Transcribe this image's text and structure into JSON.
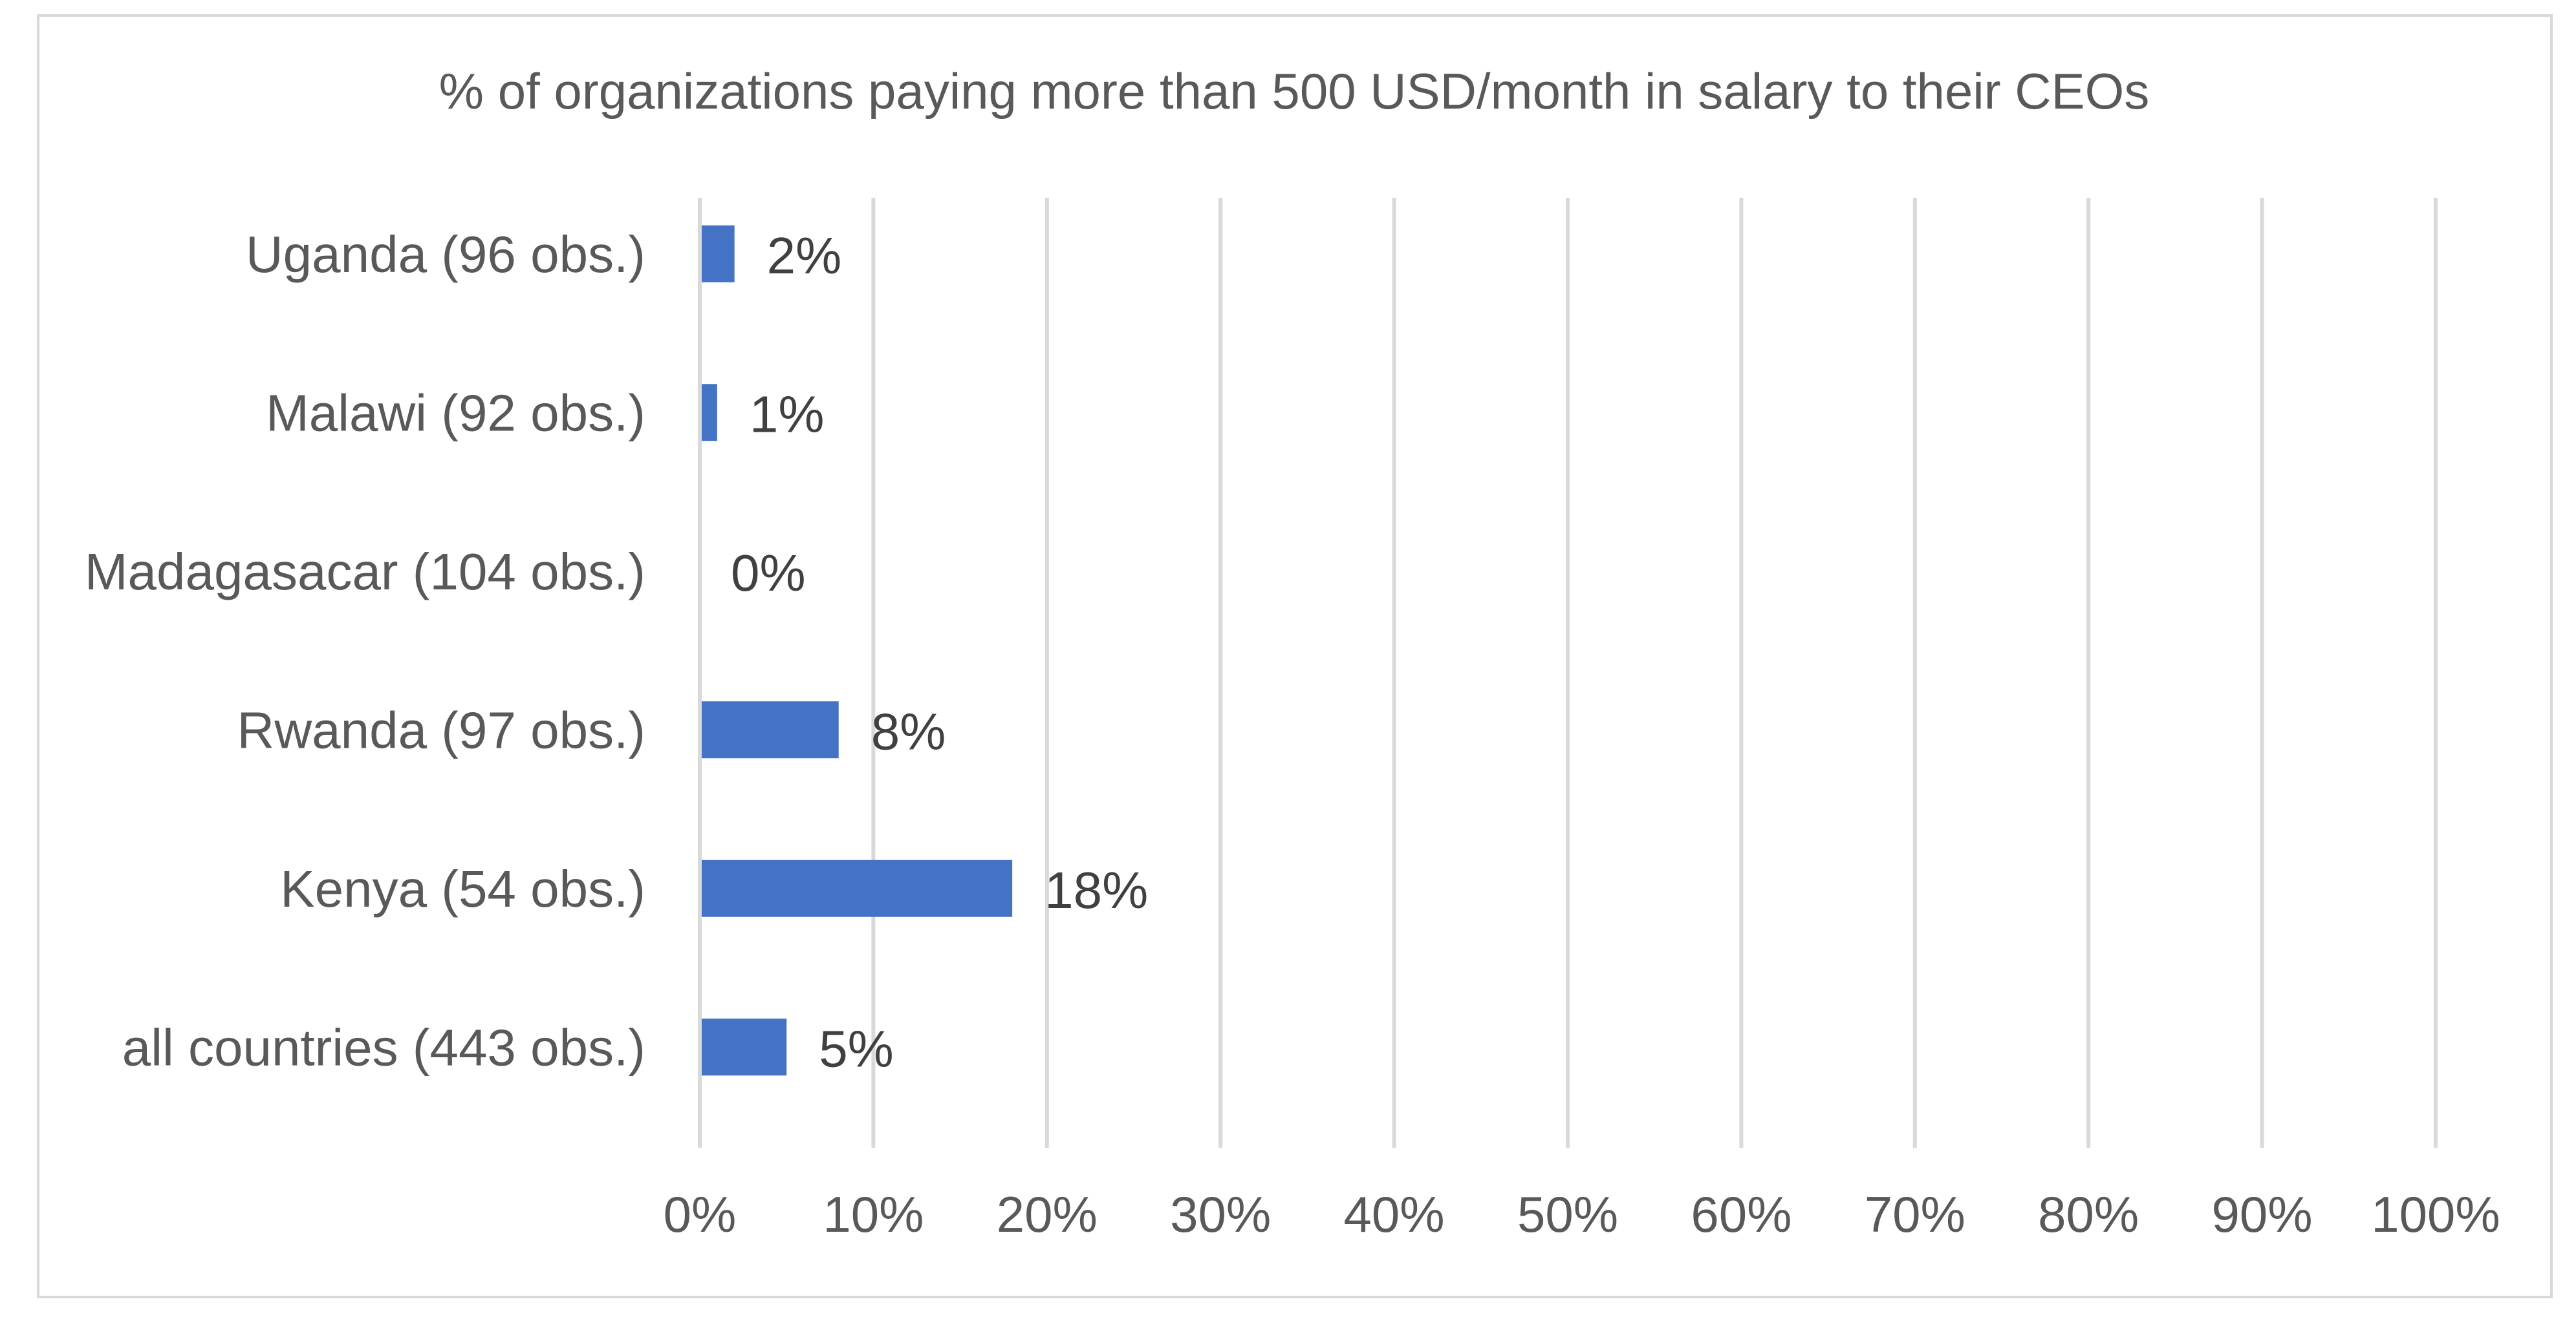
{
  "chart_data": {
    "type": "bar",
    "orientation": "horizontal",
    "title": "% of organizations paying more than 500 USD/month in salary to their CEOs",
    "categories": [
      "Uganda (96 obs.)",
      "Malawi (92 obs.)",
      "Madagasacar (104 obs.)",
      "Rwanda (97 obs.)",
      "Kenya (54 obs.)",
      "all countries (443 obs.)"
    ],
    "values": [
      2,
      1,
      0,
      8,
      18,
      5
    ],
    "data_labels": [
      "2%",
      "1%",
      "0%",
      "8%",
      "18%",
      "5%"
    ],
    "xlim": [
      0,
      100
    ],
    "x_ticks": [
      0,
      10,
      20,
      30,
      40,
      50,
      60,
      70,
      80,
      90,
      100
    ],
    "x_tick_labels": [
      "0%",
      "10%",
      "20%",
      "30%",
      "40%",
      "50%",
      "60%",
      "70%",
      "80%",
      "90%",
      "100%"
    ],
    "xlabel": "",
    "ylabel": "",
    "grid": true,
    "legend": "none",
    "bar_color": "#4472c4"
  }
}
